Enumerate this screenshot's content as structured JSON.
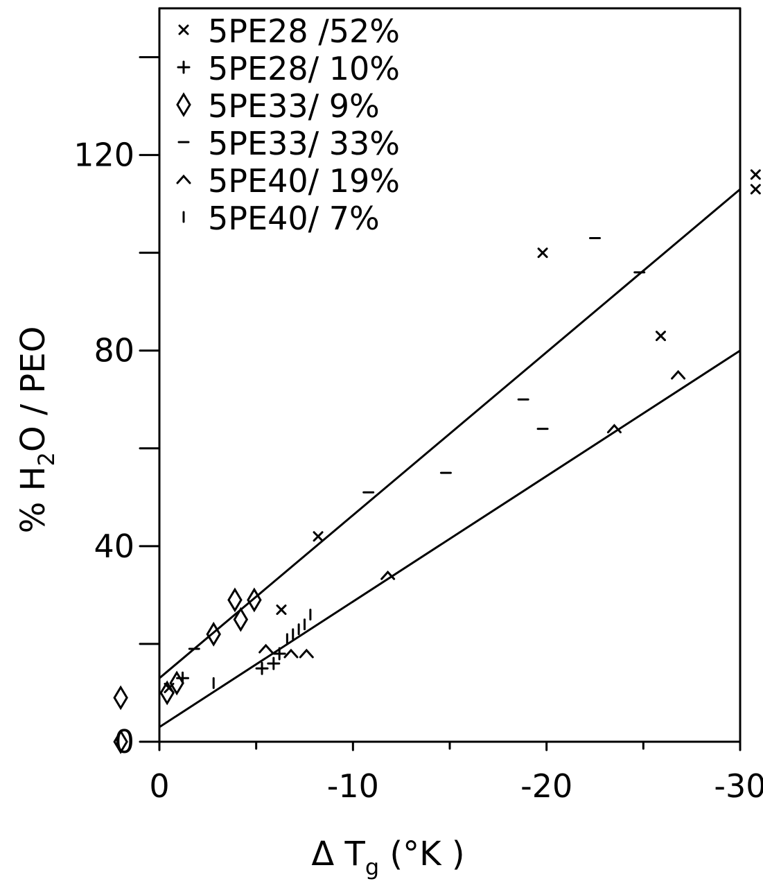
{
  "chart_data": {
    "type": "scatter",
    "xlabel": "ΔTg (°K )",
    "ylabel": "% H2O / PEO",
    "xlabel_parts": [
      "Δ T",
      "g",
      " (°K )"
    ],
    "ylabel_parts": [
      "% H",
      "2",
      "O / PEO"
    ],
    "xlim": [
      0,
      -30
    ],
    "ylim": [
      0,
      150
    ],
    "x_ticks": [
      0,
      -10,
      -20,
      -30
    ],
    "x_tick_labels": [
      "0",
      "-10",
      "-20",
      "-30"
    ],
    "y_ticks": [
      0,
      40,
      80,
      120
    ],
    "y_tick_labels": [
      "0",
      "40",
      "80",
      "120"
    ],
    "y_minor_ticks": [
      20,
      60,
      100,
      140
    ],
    "grid": false,
    "legend_position": "top-left",
    "series": [
      {
        "name": "5PE28 /52%",
        "marker": "×",
        "points": [
          [
            -0.5,
            11
          ],
          [
            -6.3,
            27
          ],
          [
            -8.2,
            42
          ],
          [
            -19.8,
            100
          ],
          [
            -25.9,
            83
          ],
          [
            -30.8,
            113
          ],
          [
            -30.8,
            116
          ]
        ]
      },
      {
        "name": "5PE28/ 10%",
        "marker": "+",
        "points": [
          [
            -1.2,
            13
          ],
          [
            -5.3,
            15
          ],
          [
            -5.9,
            16
          ],
          [
            -6.2,
            18
          ]
        ]
      },
      {
        "name": "5PE33/ 9%",
        "marker": "◊",
        "points": [
          [
            2.0,
            9
          ],
          [
            -0.4,
            10
          ],
          [
            -0.9,
            12
          ],
          [
            -2.8,
            22
          ],
          [
            -3.9,
            29
          ],
          [
            -4.2,
            25
          ],
          [
            -4.9,
            29
          ],
          [
            2.0,
            0
          ]
        ]
      },
      {
        "name": "5PE33/ 33%",
        "marker": "-",
        "points": [
          [
            -1.8,
            19
          ],
          [
            -10.8,
            51
          ],
          [
            -14.8,
            55
          ],
          [
            -18.8,
            70
          ],
          [
            -19.8,
            64
          ],
          [
            -22.5,
            103
          ],
          [
            -24.8,
            96
          ]
        ]
      },
      {
        "name": "5PE40/ 19%",
        "marker": "^",
        "points": [
          [
            -5.5,
            19
          ],
          [
            -6.8,
            18
          ],
          [
            -7.6,
            18
          ],
          [
            -11.8,
            34
          ],
          [
            -23.5,
            64
          ],
          [
            -26.8,
            75
          ]
        ]
      },
      {
        "name": "5PE40/ 7%",
        "marker": "ı",
        "points": [
          [
            -2.8,
            12
          ],
          [
            -6.6,
            21
          ],
          [
            -6.9,
            22
          ],
          [
            -7.2,
            23
          ],
          [
            -7.5,
            24
          ],
          [
            -7.8,
            26
          ]
        ]
      }
    ],
    "fit_lines": [
      {
        "from": [
          0,
          13
        ],
        "to": [
          -30,
          113
        ]
      },
      {
        "from": [
          0,
          3
        ],
        "to": [
          -30,
          80
        ]
      }
    ]
  }
}
